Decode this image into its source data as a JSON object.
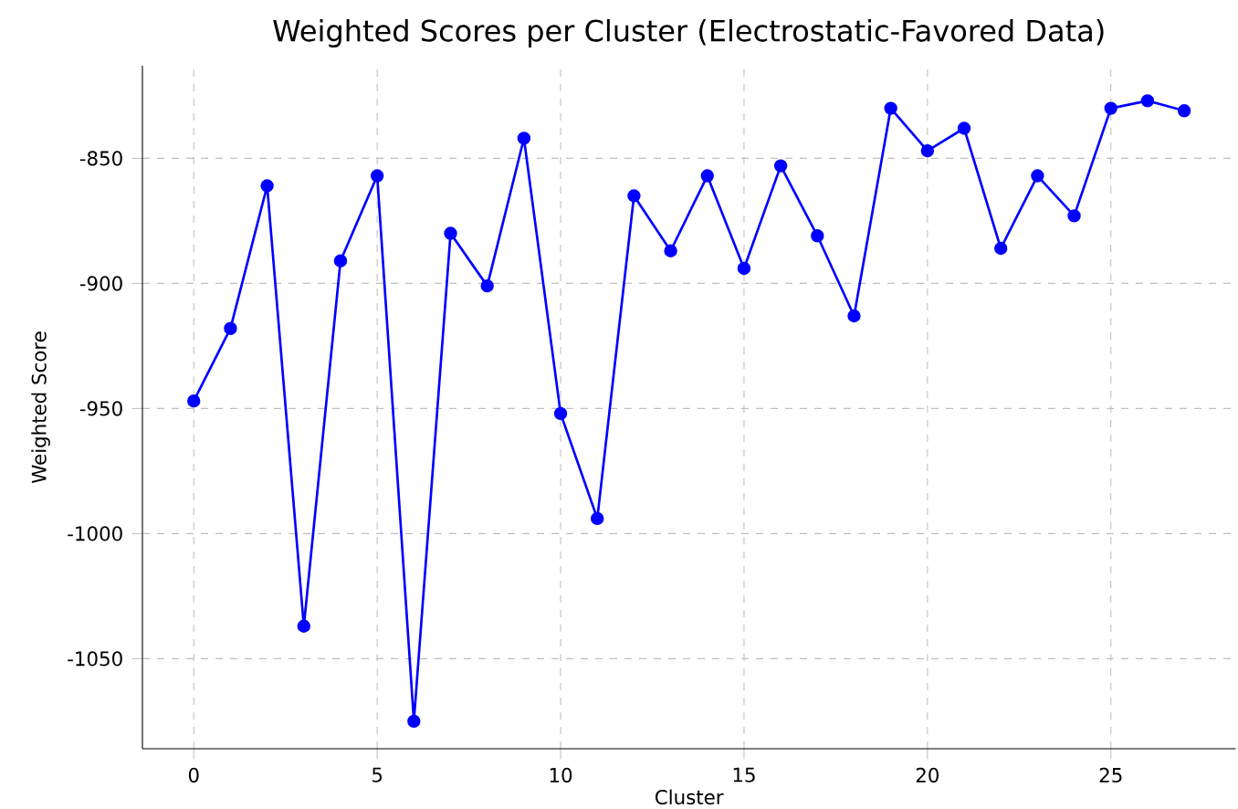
{
  "chart_data": {
    "type": "line",
    "title": "Weighted Scores per Cluster (Electrostatic-Favored Data)",
    "xlabel": "Cluster",
    "ylabel": "Weighted Score",
    "x": [
      0,
      1,
      2,
      3,
      4,
      5,
      6,
      7,
      8,
      9,
      10,
      11,
      12,
      13,
      14,
      15,
      16,
      17,
      18,
      19,
      20,
      21,
      22,
      23,
      24,
      25,
      26,
      27
    ],
    "series": [
      {
        "color": "#0000ff",
        "values": [
          -947,
          -918,
          -861,
          -1037,
          -891,
          -857,
          -1075,
          -880,
          -901,
          -842,
          -952,
          -994,
          -865,
          -887,
          -857,
          -894,
          -853,
          -881,
          -913,
          -830,
          -847,
          -838,
          -886,
          -857,
          -873,
          -830,
          -827,
          -831
        ]
      }
    ],
    "xlim": [
      -1.4,
      28.4
    ],
    "ylim": [
      -1086,
      -813
    ],
    "xticks": [
      0,
      5,
      10,
      15,
      20,
      25
    ],
    "yticks": [
      -1050,
      -1000,
      -950,
      -900,
      -850
    ],
    "grid": true,
    "marker": "circle",
    "line_style": "solid"
  }
}
